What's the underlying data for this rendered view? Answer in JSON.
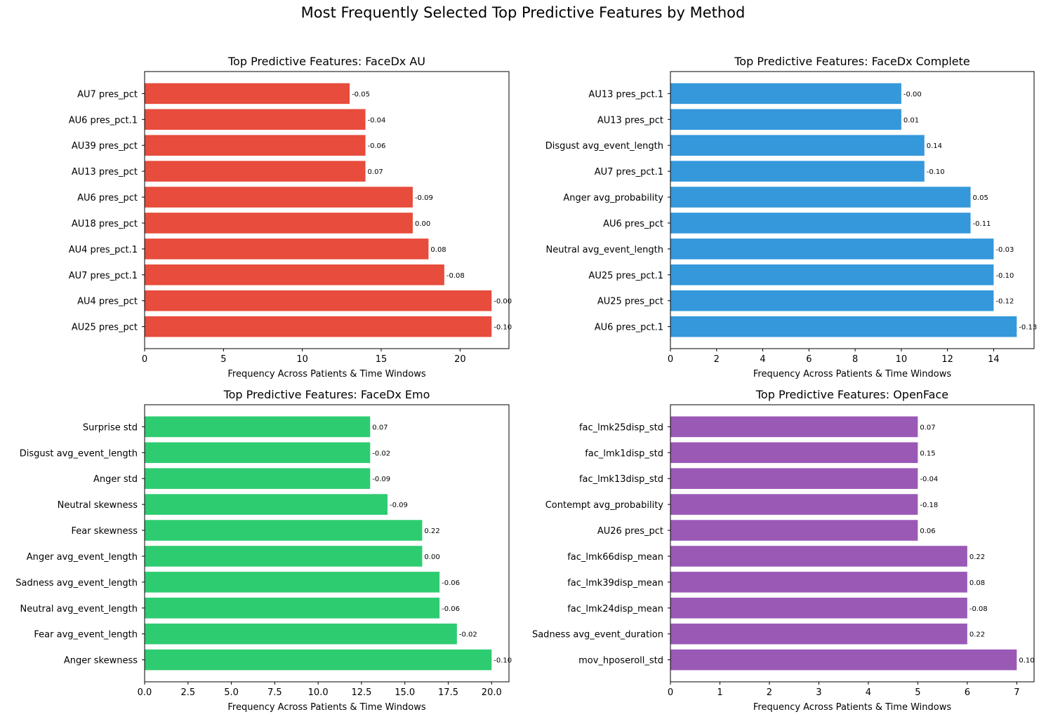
{
  "suptitle": "Most Frequently Selected Top Predictive Features by Method",
  "chart_data": [
    {
      "type": "bar",
      "orientation": "horizontal",
      "title": "Top Predictive Features: FaceDx AU",
      "xlabel": "Frequency Across Patients & Time Windows",
      "ylabel": "",
      "color": "#e74c3c",
      "xlim": [
        0,
        23.1
      ],
      "xticks": [
        "0",
        "5",
        "10",
        "15",
        "20"
      ],
      "xtick_values": [
        0,
        5,
        10,
        15,
        20
      ],
      "categories": [
        "AU25 pres_pct",
        "AU4 pres_pct",
        "AU7 pres_pct.1",
        "AU4 pres_pct.1",
        "AU18 pres_pct",
        "AU6 pres_pct",
        "AU13 pres_pct",
        "AU39 pres_pct",
        "AU6 pres_pct.1",
        "AU7 pres_pct"
      ],
      "values": [
        22,
        22,
        19,
        18,
        17,
        17,
        14,
        14,
        14,
        13
      ],
      "data_labels": [
        "-0.10",
        "-0.00",
        "-0.08",
        "0.08",
        "0.00",
        "-0.09",
        "0.07",
        "-0.06",
        "-0.04",
        "-0.05"
      ]
    },
    {
      "type": "bar",
      "orientation": "horizontal",
      "title": "Top Predictive Features: FaceDx Complete",
      "xlabel": "Frequency Across Patients & Time Windows",
      "ylabel": "",
      "color": "#3498db",
      "xlim": [
        0,
        15.75
      ],
      "xticks": [
        "0",
        "2",
        "4",
        "6",
        "8",
        "10",
        "12",
        "14"
      ],
      "xtick_values": [
        0,
        2,
        4,
        6,
        8,
        10,
        12,
        14
      ],
      "categories": [
        "AU6 pres_pct.1",
        "AU25 pres_pct",
        "AU25 pres_pct.1",
        "Neutral avg_event_length",
        "AU6 pres_pct",
        "Anger avg_probability",
        "AU7 pres_pct.1",
        "Disgust avg_event_length",
        "AU13 pres_pct",
        "AU13 pres_pct.1"
      ],
      "values": [
        15,
        14,
        14,
        14,
        13,
        13,
        11,
        11,
        10,
        10
      ],
      "data_labels": [
        "-0.13",
        "-0.12",
        "-0.10",
        "-0.03",
        "-0.11",
        "0.05",
        "-0.10",
        "0.14",
        "0.01",
        "-0.00"
      ]
    },
    {
      "type": "bar",
      "orientation": "horizontal",
      "title": "Top Predictive Features: FaceDx Emo",
      "xlabel": "Frequency Across Patients & Time Windows",
      "ylabel": "",
      "color": "#2ecc71",
      "xlim": [
        0,
        21
      ],
      "xticks": [
        "0.0",
        "2.5",
        "5.0",
        "7.5",
        "10.0",
        "12.5",
        "15.0",
        "17.5",
        "20.0"
      ],
      "xtick_values": [
        0,
        2.5,
        5,
        7.5,
        10,
        12.5,
        15,
        17.5,
        20
      ],
      "categories": [
        "Anger skewness",
        "Fear avg_event_length",
        "Neutral avg_event_length",
        "Sadness avg_event_length",
        "Anger avg_event_length",
        "Fear skewness",
        "Neutral skewness",
        "Anger std",
        "Disgust avg_event_length",
        "Surprise std"
      ],
      "values": [
        20,
        18,
        17,
        17,
        16,
        16,
        14,
        13,
        13,
        13
      ],
      "data_labels": [
        "-0.10",
        "-0.02",
        "-0.06",
        "-0.06",
        "0.00",
        "0.22",
        "-0.09",
        "-0.09",
        "-0.02",
        "0.07"
      ]
    },
    {
      "type": "bar",
      "orientation": "horizontal",
      "title": "Top Predictive Features: OpenFace",
      "xlabel": "Frequency Across Patients & Time Windows",
      "ylabel": "",
      "color": "#9b59b6",
      "xlim": [
        0,
        7.35
      ],
      "xticks": [
        "0",
        "1",
        "2",
        "3",
        "4",
        "5",
        "6",
        "7"
      ],
      "xtick_values": [
        0,
        1,
        2,
        3,
        4,
        5,
        6,
        7
      ],
      "categories": [
        "mov_hposeroll_std",
        "Sadness avg_event_duration",
        "fac_lmk24disp_mean",
        "fac_lmk39disp_mean",
        "fac_lmk66disp_mean",
        "AU26 pres_pct",
        "Contempt avg_probability",
        "fac_lmk13disp_std",
        "fac_lmk1disp_std",
        "fac_lmk25disp_std"
      ],
      "values": [
        7,
        6,
        6,
        6,
        6,
        5,
        5,
        5,
        5,
        5
      ],
      "data_labels": [
        "0.10",
        "0.22",
        "-0.08",
        "0.08",
        "0.22",
        "0.06",
        "-0.18",
        "-0.04",
        "0.15",
        "0.07"
      ]
    }
  ]
}
